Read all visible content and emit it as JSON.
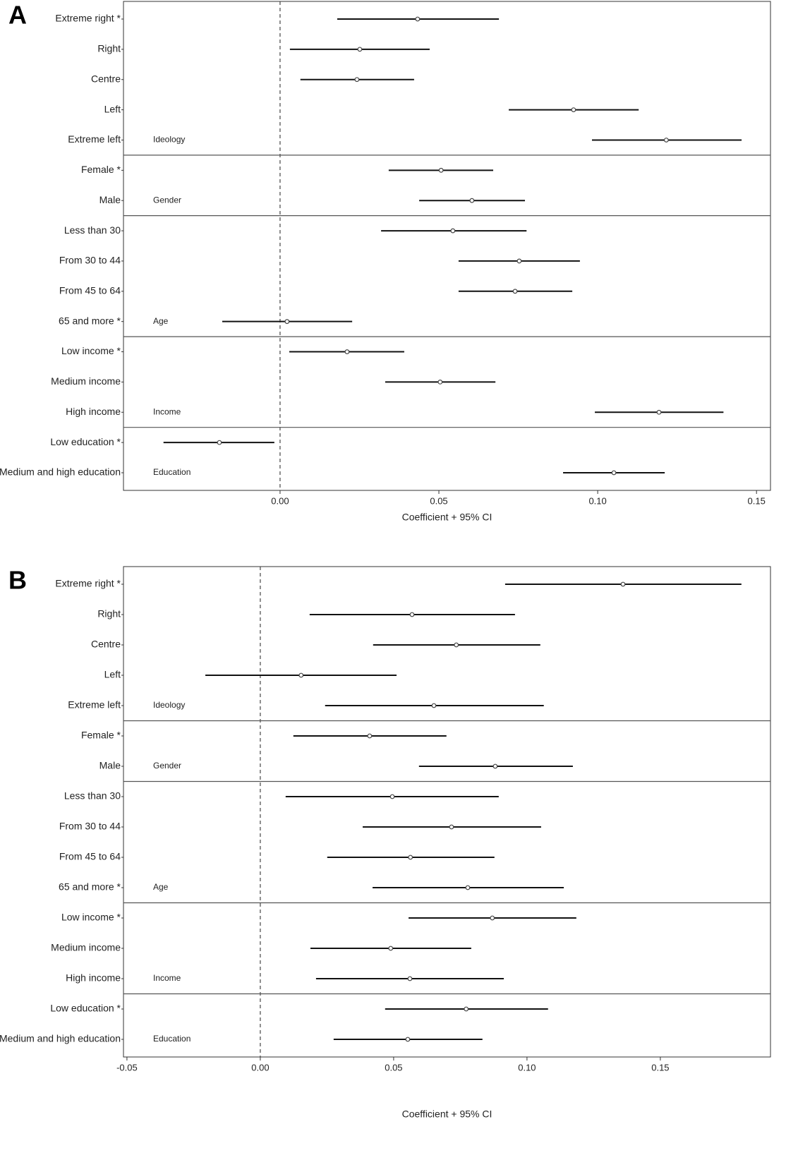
{
  "chart_data": [
    {
      "type": "forest",
      "panel": "A",
      "xlabel": "Coefficient + 95% CI",
      "categories": [
        "Extreme right *",
        "Right",
        "Centre",
        "Left",
        "Extreme left",
        "Female *",
        "Male",
        "Less than 30",
        "From 30 to 44",
        "From 45 to 64",
        "65 and more *",
        "Low income *",
        "Medium income",
        "High income",
        "Low education *",
        "Medium and high education"
      ],
      "group_labels": [
        null,
        null,
        null,
        null,
        "Ideology",
        null,
        "Gender",
        null,
        null,
        null,
        "Age",
        null,
        null,
        "Income",
        null,
        "Education"
      ],
      "values": [
        0.0433,
        0.0251,
        0.0242,
        0.0924,
        0.1216,
        0.0507,
        0.0604,
        0.0544,
        0.0753,
        0.074,
        0.0022,
        0.0211,
        0.0504,
        0.1193,
        -0.0191,
        0.1051
      ],
      "ci_low": [
        0.018,
        0.0031,
        0.0064,
        0.072,
        0.0982,
        0.0342,
        0.0438,
        0.0318,
        0.0562,
        0.0562,
        -0.0182,
        0.0029,
        0.0331,
        0.0991,
        -0.0367,
        0.0891
      ],
      "ci_high": [
        0.0689,
        0.0471,
        0.0422,
        0.1129,
        0.1453,
        0.0671,
        0.0771,
        0.0776,
        0.0944,
        0.092,
        0.0227,
        0.0391,
        0.0678,
        0.1396,
        -0.0018,
        0.1211
      ],
      "xlim": [
        -0.0493,
        0.1544
      ],
      "xticks": [
        {
          "value": 0,
          "label": "0.00"
        },
        0.05,
        {
          "value": 0.1,
          "label": "0.10"
        },
        0.15
      ],
      "vline": 0,
      "color": "#111111"
    },
    {
      "type": "forest",
      "panel": "B",
      "xlabel": "Coefficient + 95% CI",
      "categories": [
        "Extreme right *",
        "Right",
        "Centre",
        "Left",
        "Extreme left",
        "Female *",
        "Male",
        "Less than 30",
        "From 30 to 44",
        "From 45 to 64",
        "65 and more *",
        "Low income *",
        "Medium income",
        "High income",
        "Low education *",
        "Medium and high education"
      ],
      "group_labels": [
        null,
        null,
        null,
        null,
        "Ideology",
        null,
        "Gender",
        null,
        null,
        null,
        "Age",
        null,
        null,
        "Income",
        null,
        "Education"
      ],
      "values": [
        0.136,
        0.0569,
        0.0735,
        0.0153,
        0.0651,
        0.041,
        0.0881,
        0.0495,
        0.0717,
        0.0563,
        0.0778,
        0.087,
        0.0489,
        0.0561,
        0.0772,
        0.0553
      ],
      "ci_low": [
        0.0918,
        0.0185,
        0.0423,
        -0.0206,
        0.0243,
        0.0124,
        0.0595,
        0.0095,
        0.0384,
        0.0251,
        0.0421,
        0.0556,
        0.0188,
        0.0209,
        0.0468,
        0.0275
      ],
      "ci_high": [
        0.1804,
        0.0955,
        0.105,
        0.0511,
        0.1063,
        0.0698,
        0.1172,
        0.0894,
        0.1053,
        0.0878,
        0.1138,
        0.1185,
        0.0791,
        0.0913,
        0.1079,
        0.0833
      ],
      "xlim": [
        -0.0513,
        0.1913
      ],
      "xticks": [
        -0.05,
        {
          "value": 0,
          "label": "0.00"
        },
        0.05,
        {
          "value": 0.1,
          "label": "0.10"
        },
        0.15
      ],
      "vline": 0,
      "color": "#111111"
    }
  ]
}
